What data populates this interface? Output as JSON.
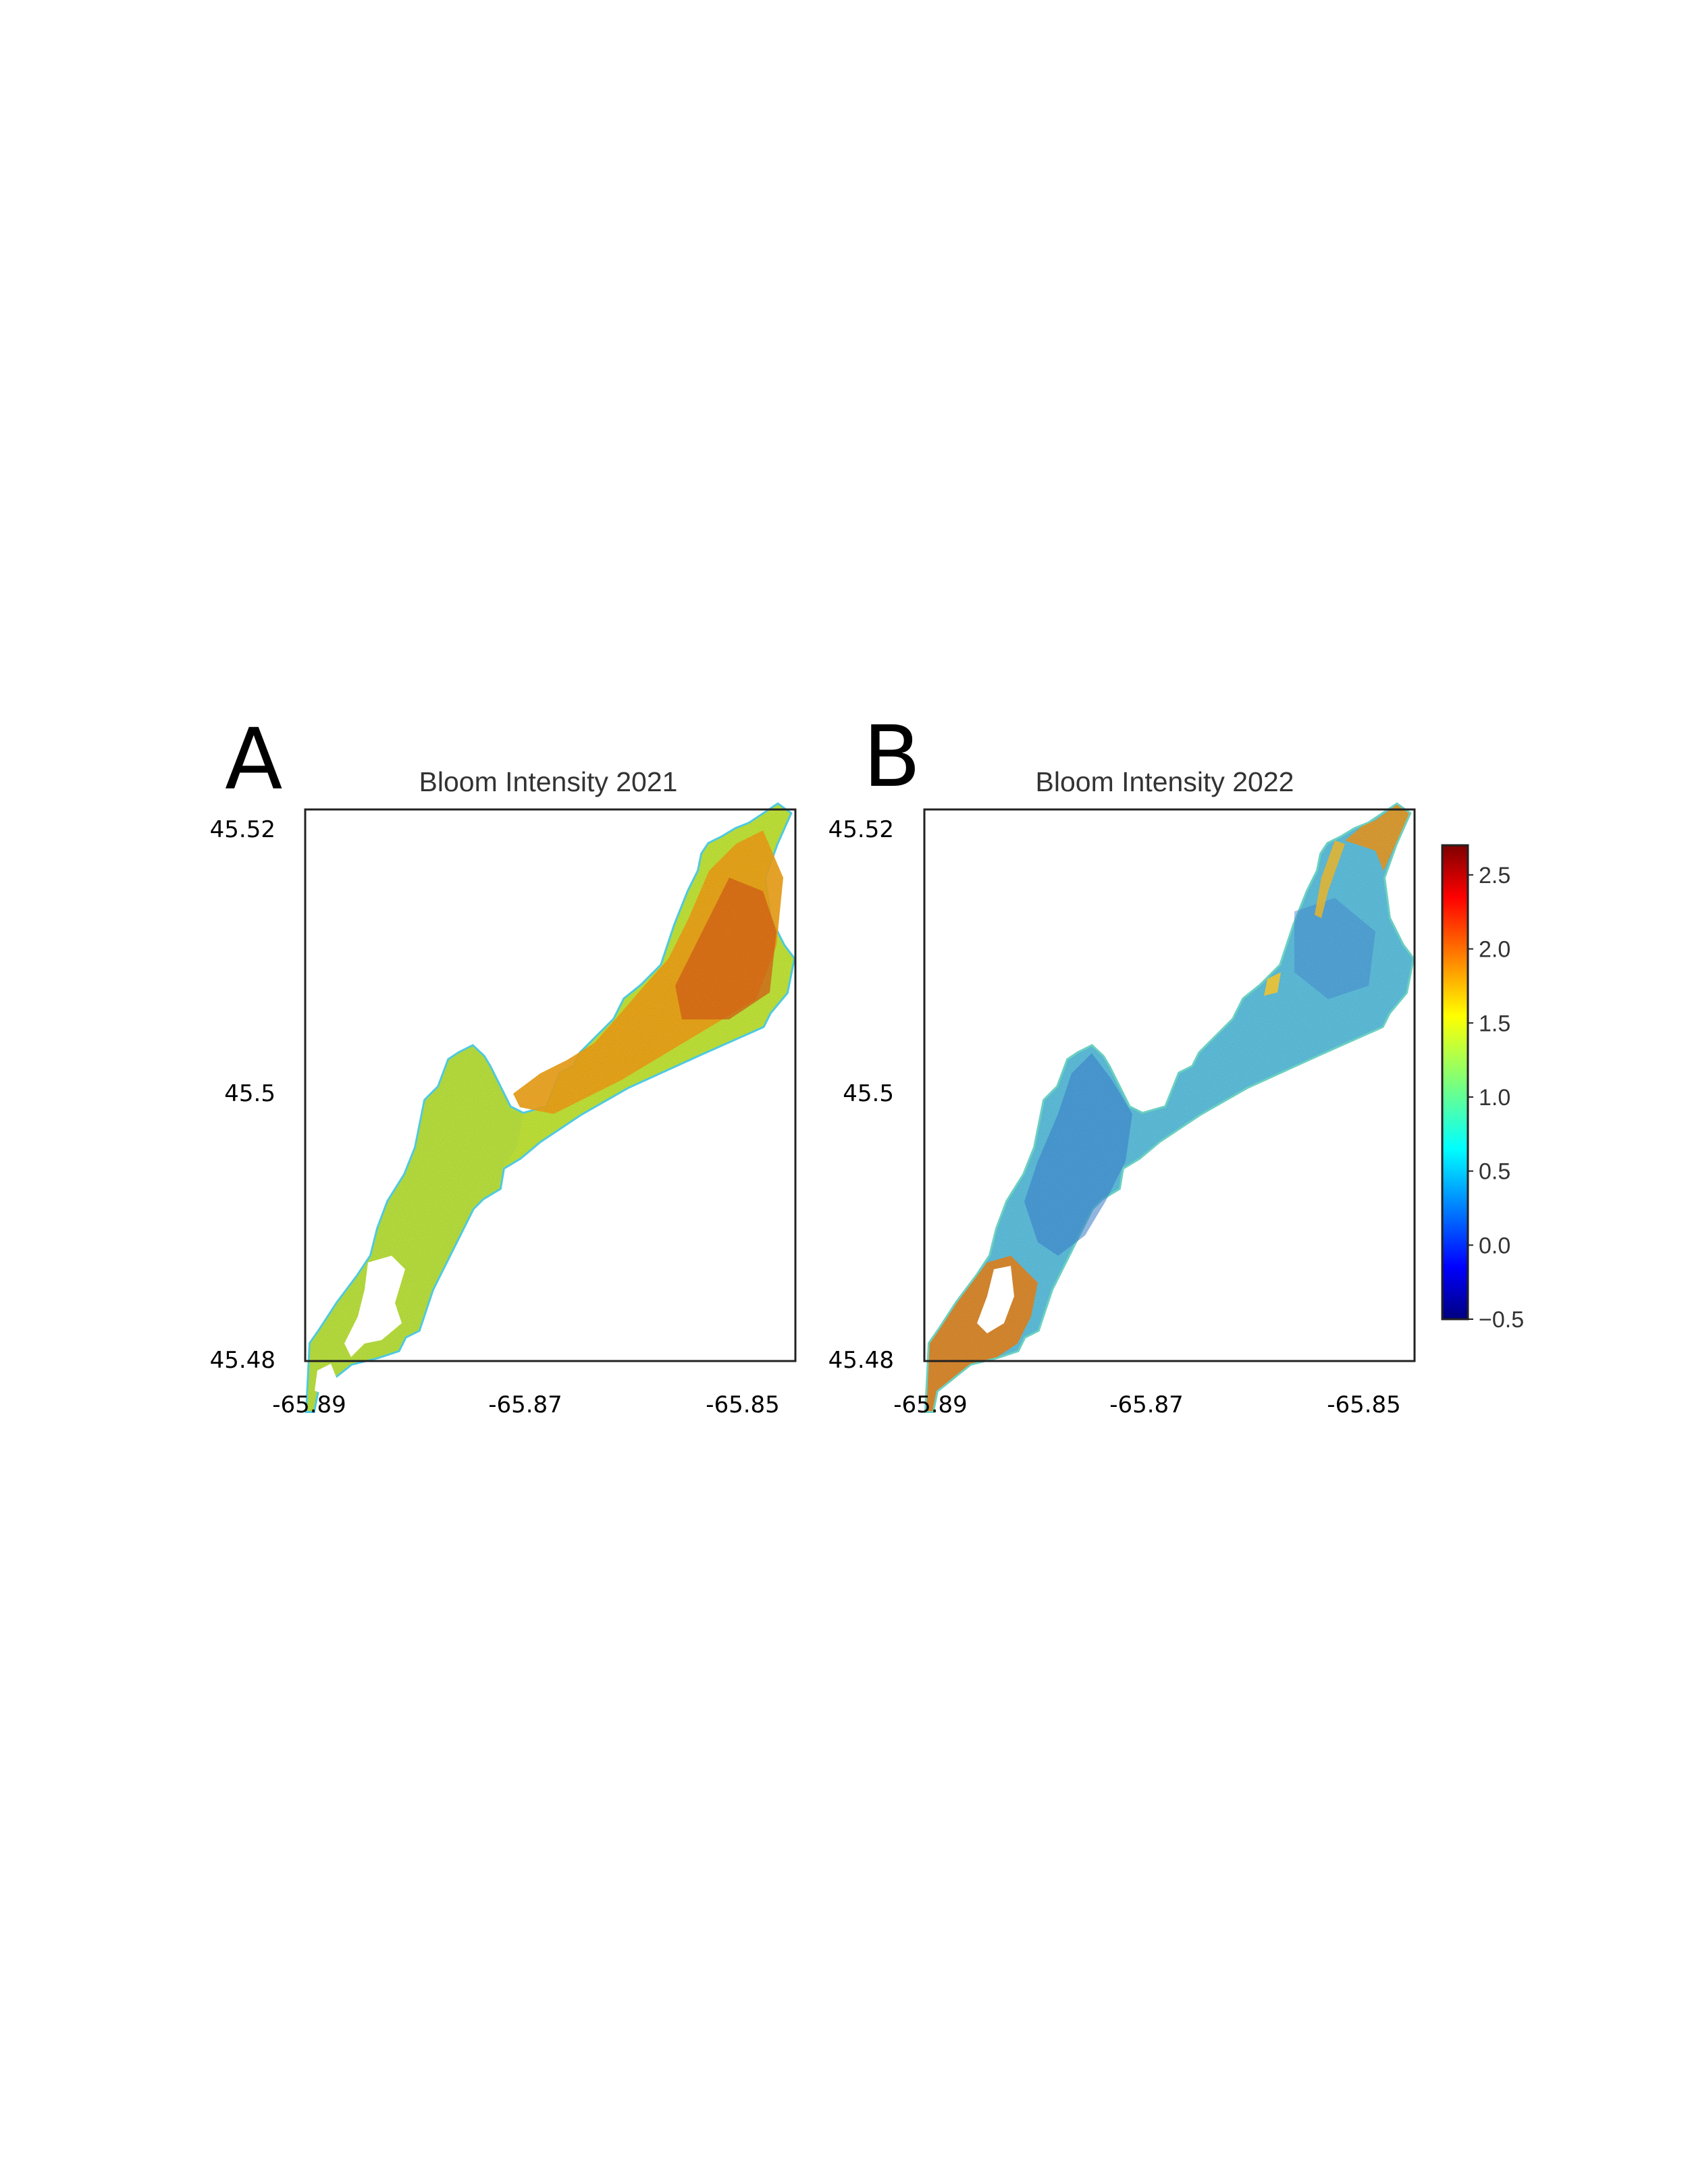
{
  "panels": [
    {
      "letter": "A",
      "title": "Bloom Intensity 2021",
      "lat_ticks": [
        "45.52",
        "45.5",
        "45.48"
      ],
      "lon_ticks": [
        "-65.89",
        "-65.87",
        "-65.85"
      ],
      "dominant_color": "#f2a21a",
      "dominant_value_range": [
        1.3,
        2.2
      ]
    },
    {
      "letter": "B",
      "title": "Bloom Intensity 2022",
      "lat_ticks": [
        "45.52",
        "45.5",
        "45.48"
      ],
      "lon_ticks": [
        "-65.89",
        "-65.87",
        "-65.85"
      ],
      "dominant_color": "#55b4e6",
      "dominant_value_range": [
        0.3,
        1.0
      ]
    }
  ],
  "colorbar": {
    "colormap": "jet",
    "min": -0.5,
    "max": 2.7,
    "ticks": [
      "2.5",
      "2.0",
      "1.5",
      "1.0",
      "0.5",
      "0.0",
      "−0.5"
    ]
  }
}
